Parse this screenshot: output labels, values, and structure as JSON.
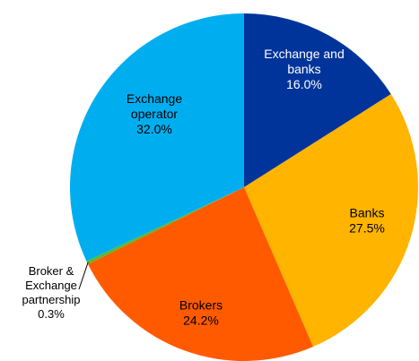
{
  "chart_data": {
    "type": "pie",
    "title": "",
    "series": [
      {
        "values": [
          16.0,
          27.5,
          24.2,
          0.3,
          32.0
        ]
      }
    ],
    "slices": [
      {
        "label": "Exchange and banks",
        "label_lines": [
          "Exchange and",
          "banks"
        ],
        "value": 16.0,
        "display": "16.0%",
        "color": "#00349A",
        "label_color": "#ffffff"
      },
      {
        "label": "Banks",
        "label_lines": [
          "Banks"
        ],
        "value": 27.5,
        "display": "27.5%",
        "color": "#FFB400",
        "label_color": "#000000"
      },
      {
        "label": "Brokers",
        "label_lines": [
          "Brokers"
        ],
        "value": 24.2,
        "display": "24.2%",
        "color": "#FF5A00",
        "label_color": "#000000"
      },
      {
        "label": "Broker & Exchange partnership",
        "label_lines": [
          "Broker &",
          "Exchange",
          "partnership"
        ],
        "value": 0.3,
        "display": "0.3%",
        "color": "#5DB82E",
        "label_color": "#000000",
        "label_outside": true
      },
      {
        "label": "Exchange operator",
        "label_lines": [
          "Exchange",
          "operator"
        ],
        "value": 32.0,
        "display": "32.0%",
        "color": "#00AEEF",
        "label_color": "#000000"
      }
    ],
    "start_angle": "12 o'clock",
    "direction": "clockwise",
    "legend": "none"
  }
}
